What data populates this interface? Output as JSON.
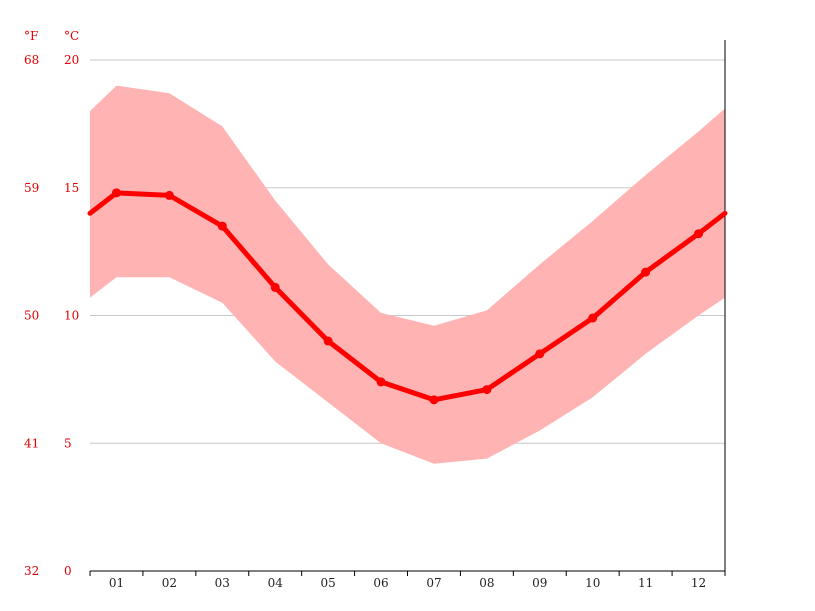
{
  "chart_data": {
    "type": "line",
    "unit_labels": {
      "fahrenheit": "°F",
      "celsius": "°C"
    },
    "yticks_c": [
      "0",
      "5",
      "10",
      "15",
      "20"
    ],
    "yticks_f": [
      "32",
      "41",
      "50",
      "59",
      "68"
    ],
    "ylim": [
      0,
      20
    ],
    "categories": [
      "01",
      "02",
      "03",
      "04",
      "05",
      "06",
      "07",
      "08",
      "09",
      "10",
      "11",
      "12"
    ],
    "series": [
      {
        "values": [
          14.8,
          14.7,
          13.5,
          11.1,
          9.0,
          7.4,
          6.7,
          7.1,
          8.5,
          9.9,
          11.7,
          13.2
        ]
      }
    ],
    "band": {
      "max": [
        19.0,
        18.7,
        17.4,
        14.5,
        12.0,
        10.1,
        9.6,
        10.2,
        12.0,
        13.7,
        15.5,
        17.2
      ],
      "min": [
        11.5,
        11.5,
        10.5,
        8.2,
        6.6,
        5.0,
        4.2,
        4.4,
        5.5,
        6.8,
        8.5,
        10.0
      ]
    },
    "edge_values": {
      "line": [
        14.0,
        14.0
      ],
      "max": [
        18.0,
        18.1
      ],
      "min": [
        10.7,
        10.7
      ]
    },
    "grid": true,
    "colors": {
      "line": "#ff0000",
      "band": "#ffb3b3",
      "tick_label": "#e00000",
      "grid": "#c8c8c8"
    }
  }
}
